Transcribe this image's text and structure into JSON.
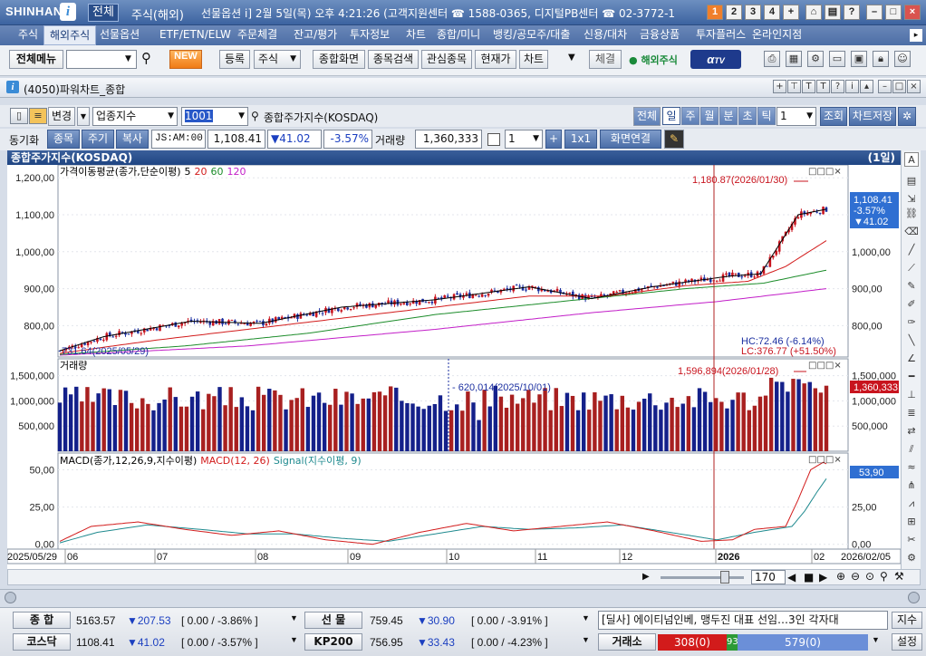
{
  "titlebar": {
    "logo": "SHINHAN",
    "modes": [
      "전체",
      "주식(해외)",
      "선물옵션"
    ],
    "info": "i] 2월 5일(목) 오후 4:21:26 (고객지원센터 ☎ 1588-0365, 디지털PB센터 ☎ 02-3772-1",
    "buttons": [
      "1",
      "2",
      "3",
      "4",
      "+"
    ]
  },
  "menu": [
    "주식",
    "해외주식",
    "선물옵션",
    "ETF/ETN/ELW",
    "주문체결",
    "잔고/평가",
    "투자정보",
    "차트",
    "종합/미니",
    "뱅킹/공모주/대출",
    "신용/대차",
    "금융상품",
    "투자플러스",
    "온라인지점"
  ],
  "menu_selected": 1,
  "toolbar": {
    "all_menu": "전체메뉴",
    "new": "NEW",
    "register": "등록",
    "stock_select": "주식",
    "buttons": [
      "종합화면",
      "종목검색",
      "관심종목",
      "현재가",
      "차트"
    ],
    "settle": "체결",
    "overseas": "해외주식",
    "tv": "TV"
  },
  "window": {
    "title": "(4050)파워차트_종합"
  },
  "controls": {
    "change": "변경",
    "index_type": "업종지수",
    "code": "1001",
    "name": "종합주가지수(KOSDAQ)",
    "periods": [
      "전체",
      "일",
      "주",
      "월",
      "분",
      "초",
      "틱"
    ],
    "period_selected": 1,
    "period_count": "1",
    "lookup": "조회",
    "save": "차트저장"
  },
  "controls2": {
    "sync": "동기화",
    "tabs": [
      "종목",
      "주기",
      "복사"
    ],
    "ticker": "JS:AM:00",
    "price": "1,108.41",
    "change": "▼41.02",
    "rate": "-3.57%",
    "volume_label": "거래량",
    "volume": "1,360,333",
    "layout_count": "1",
    "grid": "1x1",
    "link": "화면연결"
  },
  "chart_header": {
    "title": "종합주가지수(KOSDAQ)",
    "period": "(1일)"
  },
  "colors": {
    "up": "#c8141e",
    "down": "#1b2fa0",
    "ma5": "#000000",
    "ma20": "#d21b1b",
    "ma60": "#1c8c2a",
    "ma120": "#c21ec8",
    "macd": "#d21b1b",
    "signal": "#1f8a8f"
  },
  "chart_data": [
    {
      "type": "candlestick",
      "title": "종합주가지수(KOSDAQ)",
      "legend": {
        "name": "가격이동평균(종가,단순이평)",
        "periods": [
          "5",
          "20",
          "60",
          "120"
        ]
      },
      "ylim": [
        720,
        1230
      ],
      "yticks": [
        "800,00",
        "900,00",
        "1,000,00",
        "1,100,00",
        "1,200,00"
      ],
      "x_labels": [
        "2025/05/29",
        "06",
        "07",
        "08",
        "09",
        "10",
        "11",
        "12",
        "2026",
        "02",
        "2026/02/05"
      ],
      "ma_anchor_points": {
        "ma5": [
          [
            0,
            732
          ],
          [
            14,
            770
          ],
          [
            42,
            812
          ],
          [
            64,
            806
          ],
          [
            90,
            850
          ],
          [
            120,
            870
          ],
          [
            150,
            905
          ],
          [
            170,
            873
          ],
          [
            190,
            906
          ],
          [
            214,
            934
          ],
          [
            224,
            940
          ],
          [
            236,
            1100
          ],
          [
            245,
            1115
          ]
        ],
        "ma20": [
          [
            0,
            725
          ],
          [
            30,
            760
          ],
          [
            60,
            790
          ],
          [
            90,
            820
          ],
          [
            120,
            850
          ],
          [
            150,
            880
          ],
          [
            175,
            880
          ],
          [
            200,
            908
          ],
          [
            220,
            920
          ],
          [
            232,
            960
          ],
          [
            245,
            1030
          ]
        ],
        "ma60": [
          [
            0,
            722
          ],
          [
            40,
            745
          ],
          [
            80,
            780
          ],
          [
            120,
            830
          ],
          [
            160,
            865
          ],
          [
            200,
            900
          ],
          [
            225,
            915
          ],
          [
            245,
            950
          ]
        ],
        "ma120": [
          [
            0,
            720
          ],
          [
            60,
            745
          ],
          [
            120,
            790
          ],
          [
            170,
            835
          ],
          [
            210,
            865
          ],
          [
            245,
            900
          ]
        ]
      },
      "annotations": {
        "high": "1,180.87(2026/01/30)",
        "low": "731.64(2025/05/29)",
        "hc": "HC:72.46 (-6.14%)",
        "lc": "LC:376.77 (+51.50%)",
        "last_price": "1,108.41",
        "last_rate": "-3.57%",
        "last_change": "▼41.02"
      }
    },
    {
      "type": "bar",
      "title": "거래량",
      "ylim": [
        0,
        1800000
      ],
      "yticks": [
        "500,000",
        "1,000,000",
        "1,500,000"
      ],
      "annotations": {
        "max": "1,596,894(2026/01/28)",
        "min": "620,014(2025/10/01)",
        "last": "1,360,333"
      }
    },
    {
      "type": "line",
      "title": "MACD(종가,12,26,9,지수이평)",
      "series": [
        {
          "name": "MACD(12, 26)"
        },
        {
          "name": "Signal(지수이평, 9)"
        }
      ],
      "ylim": [
        -2,
        60
      ],
      "yticks": [
        "0,00",
        "25,00",
        "50,00"
      ],
      "annotations": {
        "last": "53,90"
      }
    }
  ],
  "scroll": {
    "count": "170"
  },
  "footer": {
    "row1": [
      {
        "label": "종   합",
        "value": "5163.57",
        "change": "▼207.53",
        "detail": "[ 0.00  / -3.86%  ]"
      },
      {
        "label": "선   물",
        "value": "759.45",
        "change": "▼30.90",
        "detail": "[ 0.00  / -3.91%  ]"
      }
    ],
    "news": "[딜사] 에이티넘인베, 맹두진 대표 선임…3인 각자대",
    "news_btn": "지수",
    "row2": [
      {
        "label": "코스닥",
        "value": "1108.41",
        "change": "▼41.02",
        "detail": "[ 0.00  / -3.57%  ]"
      },
      {
        "label": "KP200",
        "value": "756.95",
        "change": "▼33.43",
        "detail": "[ 0.00  / -4.23%  ]"
      }
    ],
    "exchange_label": "거래소",
    "exchange_up": "308(0)",
    "exchange_mid": "93",
    "exchange_down": "579(0)",
    "settings": "설정"
  }
}
